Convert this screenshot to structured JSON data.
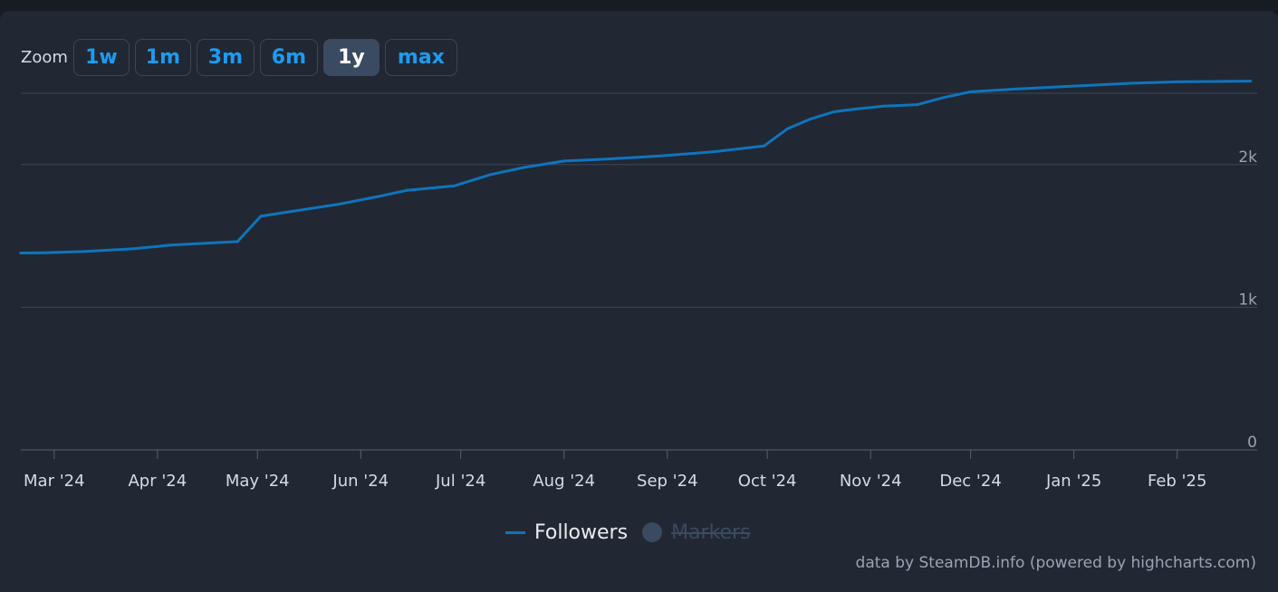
{
  "zoom": {
    "label": "Zoom",
    "buttons": [
      "1w",
      "1m",
      "3m",
      "6m",
      "1y",
      "max"
    ],
    "active": "1y"
  },
  "legend": {
    "followers_label": "Followers",
    "markers_label": "Markers",
    "markers_hidden": true
  },
  "credits": "data by SteamDB.info (powered by highcharts.com)",
  "colors": {
    "background": "#212833",
    "line": "#0f74bd",
    "grid": "#3e4654",
    "accent": "#1d9bf0"
  },
  "chart_data": {
    "type": "line",
    "title": "",
    "xlabel": "",
    "ylabel": "",
    "ylim": [
      0,
      2500
    ],
    "yticks": [
      0,
      1000,
      2000
    ],
    "ytick_labels": [
      "0",
      "1k",
      "2k"
    ],
    "xlim": [
      "2024-02-20",
      "2025-02-25"
    ],
    "xticks": [
      "2024-03-01",
      "2024-04-01",
      "2024-05-01",
      "2024-06-01",
      "2024-07-01",
      "2024-08-01",
      "2024-09-01",
      "2024-10-01",
      "2024-11-01",
      "2024-12-01",
      "2025-01-01",
      "2025-02-01"
    ],
    "xtick_labels": [
      "Mar '24",
      "Apr '24",
      "May '24",
      "Jun '24",
      "Jul '24",
      "Aug '24",
      "Sep '24",
      "Oct '24",
      "Nov '24",
      "Dec '24",
      "Jan '25",
      "Feb '25"
    ],
    "grid": true,
    "legend_position": "bottom-center",
    "series": [
      {
        "name": "Followers",
        "x": [
          "2024-02-20",
          "2024-02-27",
          "2024-03-10",
          "2024-03-25",
          "2024-04-05",
          "2024-04-25",
          "2024-05-02",
          "2024-05-08",
          "2024-05-25",
          "2024-06-07",
          "2024-06-15",
          "2024-06-29",
          "2024-07-10",
          "2024-07-20",
          "2024-08-01",
          "2024-08-15",
          "2024-08-30",
          "2024-09-15",
          "2024-09-30",
          "2024-10-07",
          "2024-10-14",
          "2024-10-21",
          "2024-10-28",
          "2024-11-05",
          "2024-11-15",
          "2024-11-23",
          "2024-12-01",
          "2024-12-15",
          "2025-01-01",
          "2025-01-18",
          "2025-02-01",
          "2025-02-23"
        ],
        "values": [
          1380,
          1382,
          1390,
          1410,
          1435,
          1460,
          1638,
          1660,
          1720,
          1780,
          1820,
          1850,
          1930,
          1980,
          2025,
          2040,
          2060,
          2090,
          2130,
          2250,
          2320,
          2370,
          2390,
          2410,
          2420,
          2470,
          2510,
          2530,
          2550,
          2570,
          2580,
          2585
        ]
      }
    ]
  }
}
